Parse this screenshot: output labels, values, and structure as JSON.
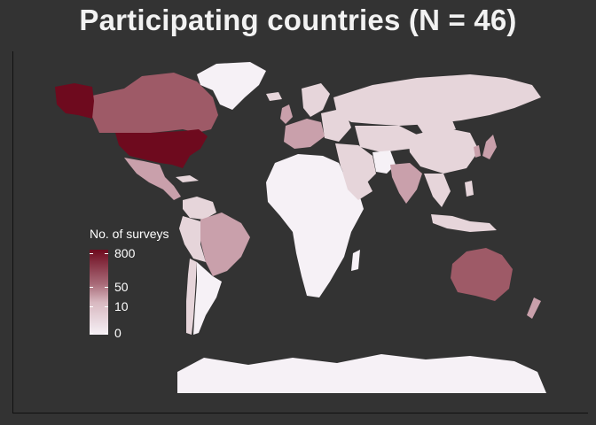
{
  "title": "Participating countries (N = 46)",
  "legend": {
    "title": "No. of surveys",
    "ticks": [
      "800",
      "50",
      "10",
      "0"
    ],
    "colors": [
      "#6e0a1e",
      "#a86a78",
      "#d8b8c0",
      "#f6f1f6"
    ]
  },
  "colors": {
    "background": "#333333",
    "no_data": "#f6f1f6",
    "low": "#e6d5da",
    "mid": "#c9a0ab",
    "high": "#9e5a67",
    "max": "#6e0a1e"
  }
}
